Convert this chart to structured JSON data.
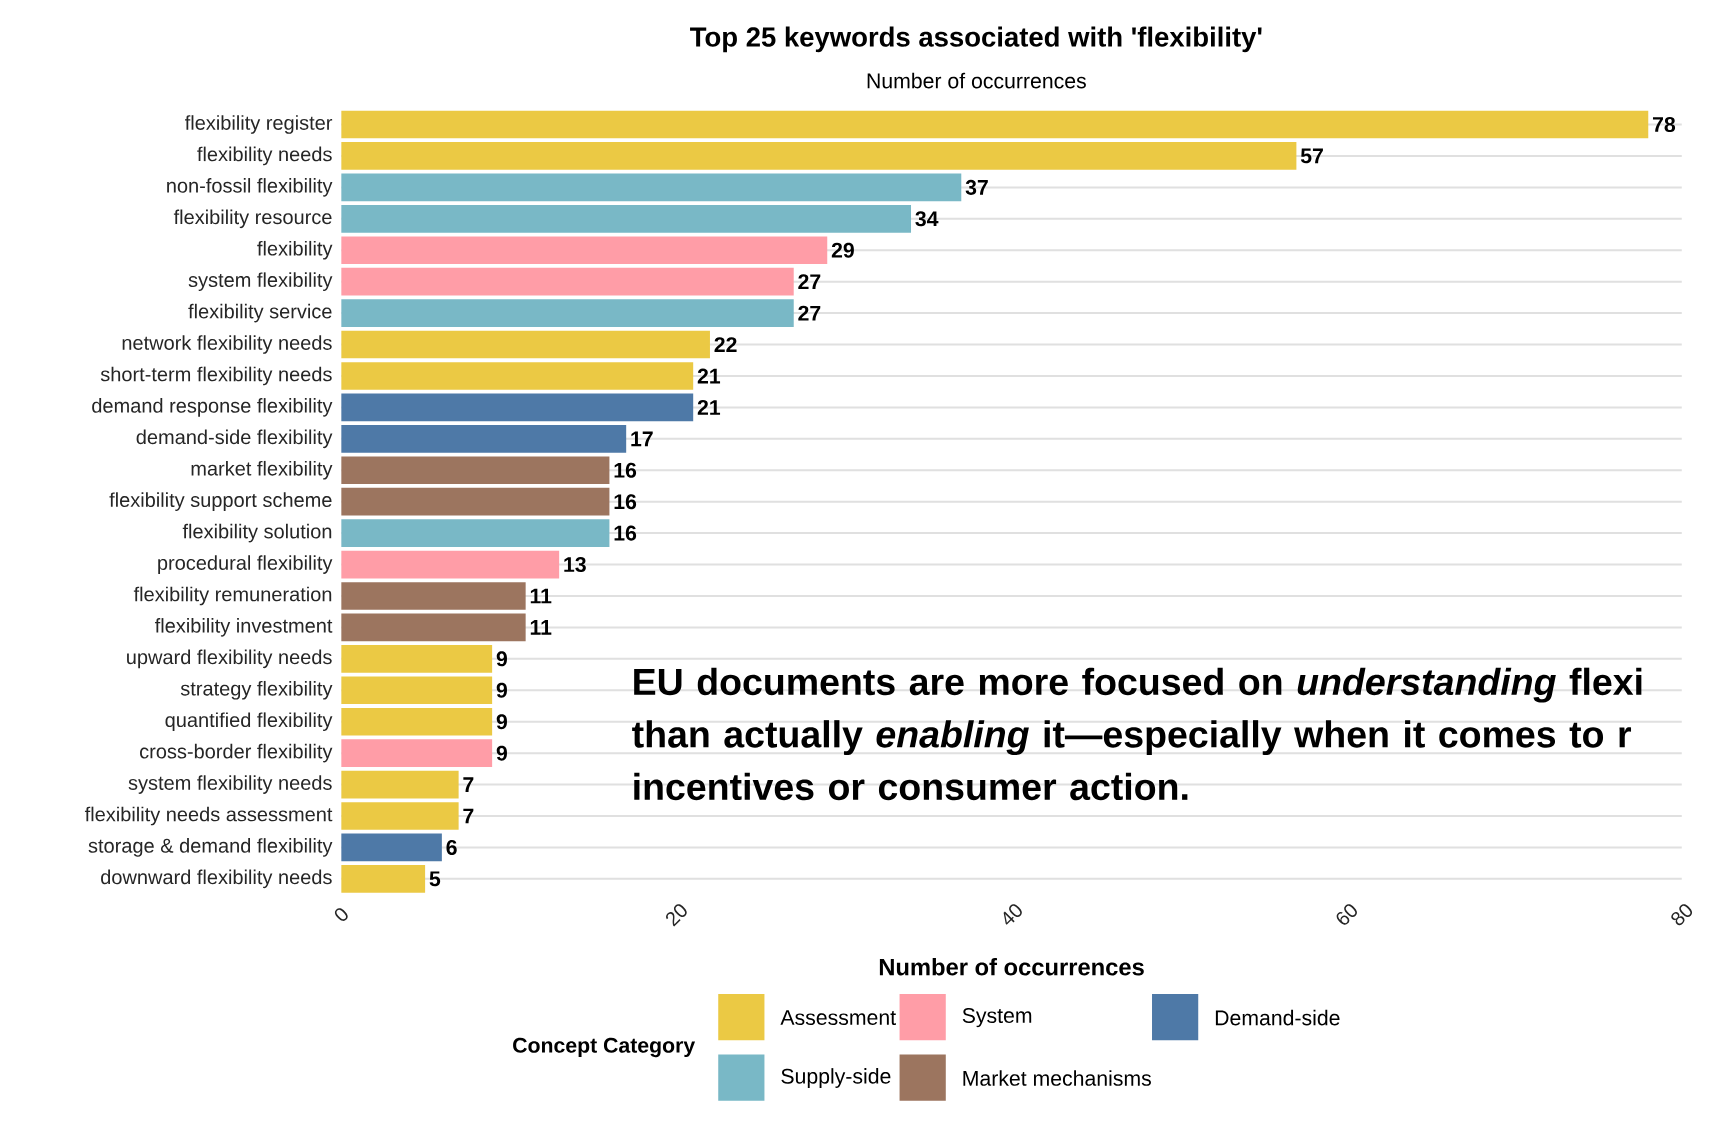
{
  "chart_data": {
    "type": "bar",
    "orientation": "horizontal",
    "title": "Top 25 keywords associated with 'flexibility'",
    "subtitle": "Number of occurrences",
    "xlabel": "Number of occurrences",
    "legend_title": "Concept Category",
    "categories": [
      "flexibility register",
      "flexibility needs",
      "non-fossil flexibility",
      "flexibility resource",
      "flexibility",
      "system flexibility",
      "flexibility service",
      "network flexibility needs",
      "short-term flexibility needs",
      "demand response flexibility",
      "demand-side flexibility",
      "market flexibility",
      "flexibility support scheme",
      "flexibility solution",
      "procedural flexibility",
      "flexibility remuneration",
      "flexibility investment",
      "upward flexibility needs",
      "strategy flexibility",
      "quantified flexibility",
      "cross-border flexibility",
      "system flexibility needs",
      "flexibility needs assessment",
      "storage & demand flexibility",
      "downward flexibility needs"
    ],
    "series": [
      {
        "name": "Assessment",
        "color": "#ebc944",
        "values": [
          78,
          57,
          null,
          null,
          null,
          null,
          null,
          22,
          21,
          null,
          null,
          null,
          null,
          null,
          null,
          null,
          null,
          9,
          9,
          9,
          null,
          7,
          7,
          null,
          5
        ]
      },
      {
        "name": "Supply-side",
        "color": "#79b8c6",
        "values": [
          null,
          null,
          37,
          34,
          null,
          null,
          27,
          null,
          null,
          null,
          null,
          null,
          null,
          16,
          null,
          null,
          null,
          null,
          null,
          null,
          null,
          null,
          null,
          null,
          null
        ]
      },
      {
        "name": "System",
        "color": "#ff9da7",
        "values": [
          null,
          null,
          null,
          null,
          29,
          27,
          null,
          null,
          null,
          null,
          null,
          null,
          null,
          null,
          13,
          null,
          null,
          null,
          null,
          null,
          9,
          null,
          null,
          null,
          null
        ]
      },
      {
        "name": "Market mechanisms",
        "color": "#9c755f",
        "values": [
          null,
          null,
          null,
          null,
          null,
          null,
          null,
          null,
          null,
          null,
          null,
          16,
          16,
          null,
          null,
          11,
          11,
          null,
          null,
          null,
          null,
          null,
          null,
          null,
          null
        ]
      },
      {
        "name": "Demand-side",
        "color": "#4e79a7",
        "values": [
          null,
          null,
          null,
          null,
          null,
          null,
          null,
          null,
          null,
          21,
          17,
          null,
          null,
          null,
          null,
          null,
          null,
          null,
          null,
          null,
          null,
          null,
          null,
          6,
          null
        ]
      }
    ],
    "xlim": [
      0,
      80
    ],
    "xticks": [
      0,
      20,
      40,
      60,
      80
    ],
    "grid": "y",
    "legend": "bottom",
    "data_labels": true,
    "annotations": [
      "EU documents are more focused on *understanding* flexi than actually *enabling* it—especially when it comes to r incentives or consumer action."
    ]
  }
}
